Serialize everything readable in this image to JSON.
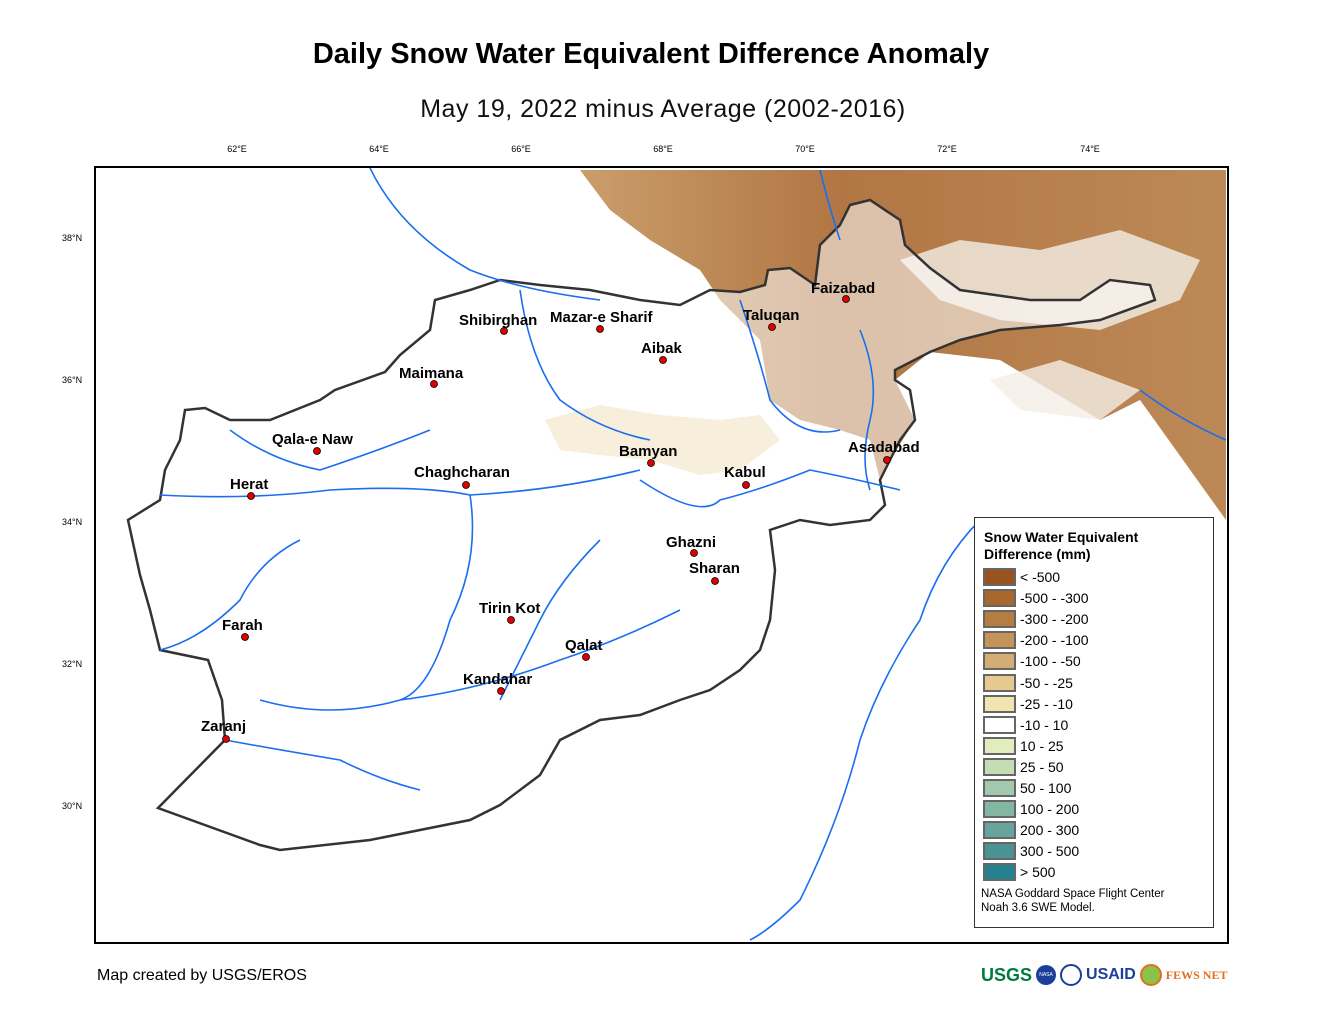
{
  "title": "Daily Snow Water Equivalent Difference Anomaly",
  "subtitle": "May 19, 2022 minus Average (2002-2016)",
  "lon_ticks": [
    "62°E",
    "64°E",
    "66°E",
    "68°E",
    "70°E",
    "72°E",
    "74°E"
  ],
  "lat_ticks": [
    "38°N",
    "36°N",
    "34°N",
    "32°N",
    "30°N"
  ],
  "cities": [
    "Faizabad",
    "Taluqan",
    "Shibirghan",
    "Mazar-e Sharif",
    "Aibak",
    "Maimana",
    "Qala-e Naw",
    "Bamyan",
    "Asadabad",
    "Chaghcharan",
    "Kabul",
    "Herat",
    "Ghazni",
    "Sharan",
    "Tirin Kot",
    "Farah",
    "Qalat",
    "Kandahar",
    "Zaranj"
  ],
  "legend": {
    "title_line1": "Snow Water Equivalent",
    "title_line2": "Difference (mm)",
    "classes": [
      {
        "label": "< -500",
        "color": "#99531f"
      },
      {
        "label": "-500 - -300",
        "color": "#a8672f"
      },
      {
        "label": "-300 - -200",
        "color": "#b57c44"
      },
      {
        "label": "-200 - -100",
        "color": "#c4935a"
      },
      {
        "label": "-100 - -50",
        "color": "#d4ad74"
      },
      {
        "label": "-50 - -25",
        "color": "#e5c98e"
      },
      {
        "label": "-25 - -10",
        "color": "#f2e4ae"
      },
      {
        "label": "-10 - 10",
        "color": "#ffffff"
      },
      {
        "label": "10 - 25",
        "color": "#e2edbf"
      },
      {
        "label": "25 - 50",
        "color": "#c5dcb5"
      },
      {
        "label": "50 - 100",
        "color": "#a2c8ae"
      },
      {
        "label": "100 - 200",
        "color": "#84b6a4"
      },
      {
        "label": "200 - 300",
        "color": "#67a49c"
      },
      {
        "label": "300 - 500",
        "color": "#4a9294"
      },
      {
        "label": "> 500",
        "color": "#23808f"
      }
    ],
    "credit_line1": "NASA Goddard Space Flight Center",
    "credit_line2": "Noah 3.6 SWE Model."
  },
  "footer": "Map created by USGS/EROS",
  "logos": [
    "USGS",
    "NASA",
    "USAID",
    "FEWS NET"
  ],
  "colors": {
    "river": "#1a6ef0",
    "border": "#333333"
  }
}
